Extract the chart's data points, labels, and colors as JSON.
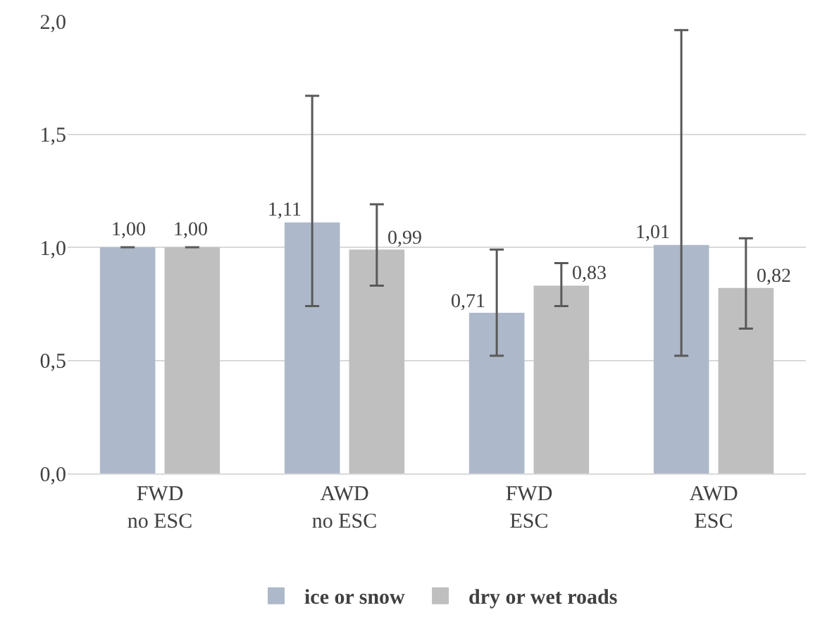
{
  "chart_data": {
    "type": "bar",
    "categories": [
      "FWD\nno ESC",
      "AWD\nno ESC",
      "FWD\nESC",
      "AWD\nESC"
    ],
    "series": [
      {
        "name": "ice or snow",
        "color": "#adb9ca",
        "values": [
          1.0,
          1.11,
          0.71,
          1.01
        ],
        "value_labels": [
          "1,00",
          "1,11",
          "0,71",
          "1,01"
        ],
        "errors": [
          null,
          [
            0.74,
            1.67
          ],
          [
            0.52,
            0.99
          ],
          [
            0.52,
            1.96
          ]
        ]
      },
      {
        "name": "dry or wet roads",
        "color": "#bfbfbf",
        "values": [
          1.0,
          0.99,
          0.83,
          0.82
        ],
        "value_labels": [
          "1,00",
          "0,99",
          "0,83",
          "0,82"
        ],
        "errors": [
          null,
          [
            0.83,
            1.19
          ],
          [
            0.74,
            0.93
          ],
          [
            0.64,
            1.04
          ]
        ]
      }
    ],
    "ylim": [
      0,
      2
    ],
    "yticks": [
      {
        "value": 0,
        "label": "0,0"
      },
      {
        "value": 0.5,
        "label": "0,5"
      },
      {
        "value": 1,
        "label": "1,0"
      },
      {
        "value": 1.5,
        "label": "1,5"
      },
      {
        "value": 2,
        "label": "2,0"
      }
    ],
    "grid": "y",
    "legend": "bottom"
  }
}
